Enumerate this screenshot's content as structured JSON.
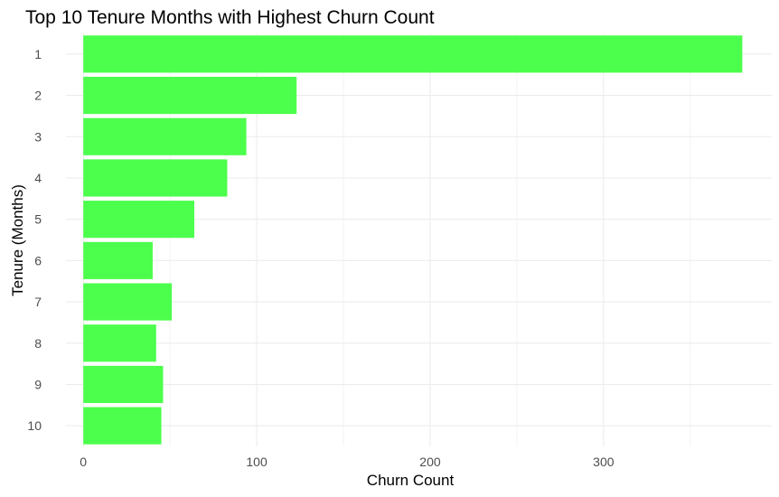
{
  "chart_data": {
    "type": "bar",
    "orientation": "horizontal",
    "title": "Top 10 Tenure Months with Highest Churn Count",
    "xlabel": "Churn Count",
    "ylabel": "Tenure (Months)",
    "categories": [
      "1",
      "2",
      "3",
      "4",
      "5",
      "6",
      "7",
      "8",
      "9",
      "10"
    ],
    "values": [
      380,
      123,
      94,
      83,
      64,
      40,
      51,
      42,
      46,
      45
    ],
    "xlim": [
      -10,
      397
    ],
    "xticks": [
      "0",
      "100",
      "200",
      "300"
    ],
    "grid": true,
    "legend": "none",
    "bar_color": "#4cff4c"
  }
}
